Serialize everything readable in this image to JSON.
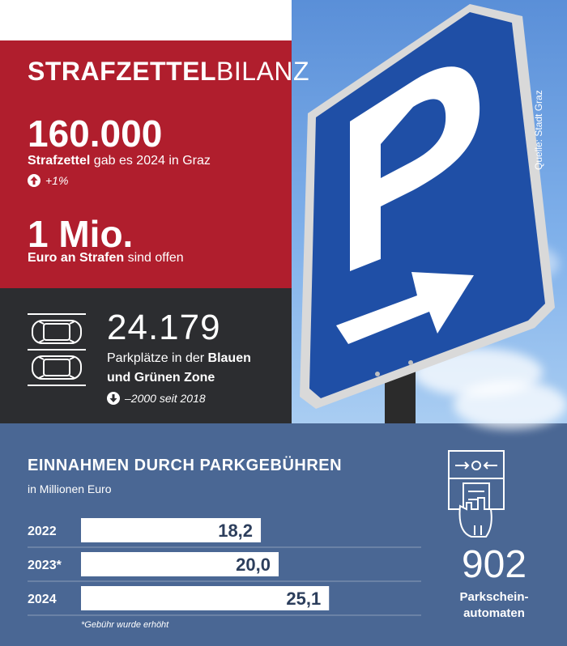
{
  "headline": {
    "bold": "STRAFZETTEL",
    "light": "BILANZ"
  },
  "source": "Quelle: Stadt Graz",
  "tickets": {
    "number": "160.000",
    "label_bold": "Strafzettel",
    "label_rest": " gab es 2024 in Graz",
    "trend": "+1%"
  },
  "fines": {
    "number": "1 Mio.",
    "label_bold": "Euro an Strafen",
    "label_rest": " sind offen"
  },
  "parking": {
    "number": "24.179",
    "line1_normal": "Parkplätze in der ",
    "line1_bold": "Blauen",
    "line2_bold": "und Grünen Zone",
    "trend": "–2000 seit 2018"
  },
  "automats": {
    "number": "902",
    "label_line1": "Parkschein-",
    "label_line2": "automaten"
  },
  "footnote": "*Gebühr wurde erhöht",
  "chart_data": {
    "type": "bar",
    "orientation": "horizontal",
    "title": "EINNAHMEN DURCH PARKGEBÜHREN",
    "subtitle": "in Millionen Euro",
    "categories": [
      "2022",
      "2023*",
      "2024"
    ],
    "values": [
      18.2,
      20.0,
      25.1
    ],
    "value_labels": [
      "18,2",
      "20,0",
      "25,1"
    ],
    "bar_color": "#ffffff",
    "label_color": "#2c3e5c"
  },
  "colors": {
    "red": "#b01e2d",
    "dark": "#2c2d30",
    "blue_band": "#4a6794",
    "sign_blue": "#1f4fa6"
  },
  "icons": {
    "up": "arrow-up-circle-icon",
    "down": "arrow-down-circle-icon",
    "cars": "parked-cars-icon",
    "automat": "parking-meter-icon"
  }
}
